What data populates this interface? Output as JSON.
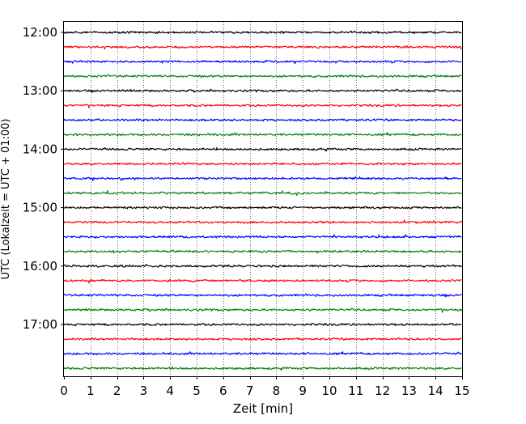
{
  "chart_data": {
    "type": "line",
    "subtype": "helicorder",
    "title": "",
    "xlabel": "Zeit  [min]",
    "ylabel": "UTC (Lokalzeit = UTC + 01:00)",
    "xlim": [
      0,
      15
    ],
    "x_ticks": [
      "0",
      "1",
      "2",
      "3",
      "4",
      "5",
      "6",
      "7",
      "8",
      "9",
      "10",
      "11",
      "12",
      "13",
      "14",
      "15"
    ],
    "y_tick_labels": [
      "12:00",
      "13:00",
      "14:00",
      "15:00",
      "16:00",
      "17:00"
    ],
    "trace_interval_minutes": 15,
    "traces": [
      "12:00",
      "12:15",
      "12:30",
      "12:45",
      "13:00",
      "13:15",
      "13:30",
      "13:45",
      "14:00",
      "14:15",
      "14:30",
      "14:45",
      "15:00",
      "15:15",
      "15:30",
      "15:45",
      "16:00",
      "16:15",
      "16:30",
      "16:45",
      "17:00",
      "17:15",
      "17:30",
      "17:45"
    ],
    "trace_colors": [
      "#000000",
      "#ff0000",
      "#0000ff",
      "#007f00"
    ],
    "grid": "vertical dotted at each minute",
    "legend": "none"
  }
}
